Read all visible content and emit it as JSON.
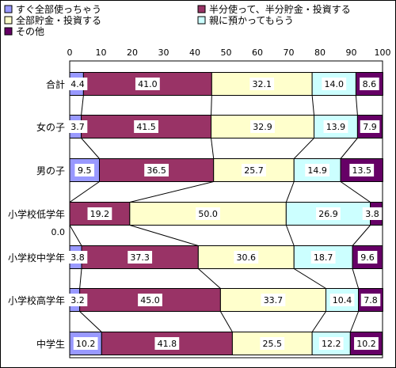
{
  "chart_data": {
    "type": "bar",
    "stacked": true,
    "percent": true,
    "orientation": "horizontal",
    "legend_position": "top",
    "axis": {
      "min": 0,
      "max": 100,
      "ticks": [
        "0",
        "10",
        "20",
        "30",
        "40",
        "50",
        "60",
        "70",
        "80",
        "90",
        "100"
      ]
    },
    "categories": [
      "合計",
      "女の子",
      "男の子",
      "小学校低学年",
      "小学校中学年",
      "小学校高学年",
      "中学生"
    ],
    "extra_label": "0.0",
    "series": [
      {
        "name": "すぐ全部使っちゃう",
        "color": "#9999ff",
        "values": [
          4.4,
          3.7,
          9.5,
          0.0,
          3.8,
          3.2,
          10.2
        ],
        "labels": [
          "4.4",
          "3.7",
          "9.5",
          "",
          "3.8",
          "3.2",
          "10.2"
        ]
      },
      {
        "name": "半分使って、半分貯金・投資する",
        "color": "#993366",
        "values": [
          41.0,
          41.5,
          36.5,
          19.2,
          37.3,
          45.0,
          41.8
        ],
        "labels": [
          "41.0",
          "41.5",
          "36.5",
          "19.2",
          "37.3",
          "45.0",
          "41.8"
        ]
      },
      {
        "name": "全部貯金・投資する",
        "color": "#ffffcc",
        "values": [
          32.1,
          32.9,
          25.7,
          50.0,
          30.6,
          33.7,
          25.5
        ],
        "labels": [
          "32.1",
          "32.9",
          "25.7",
          "50.0",
          "30.6",
          "33.7",
          "25.5"
        ]
      },
      {
        "name": "親に預かってもらう",
        "color": "#ccffff",
        "values": [
          14.0,
          13.9,
          14.9,
          26.9,
          18.7,
          10.4,
          12.2
        ],
        "labels": [
          "14.0",
          "13.9",
          "14.9",
          "26.9",
          "18.7",
          "10.4",
          "12.2"
        ]
      },
      {
        "name": "その他",
        "color": "#660066",
        "values": [
          8.6,
          7.9,
          13.5,
          3.8,
          9.6,
          7.8,
          10.2
        ],
        "labels": [
          "8.6",
          "7.9",
          "13.5",
          "3.8",
          "9.6",
          "7.8",
          "10.2"
        ]
      }
    ]
  }
}
